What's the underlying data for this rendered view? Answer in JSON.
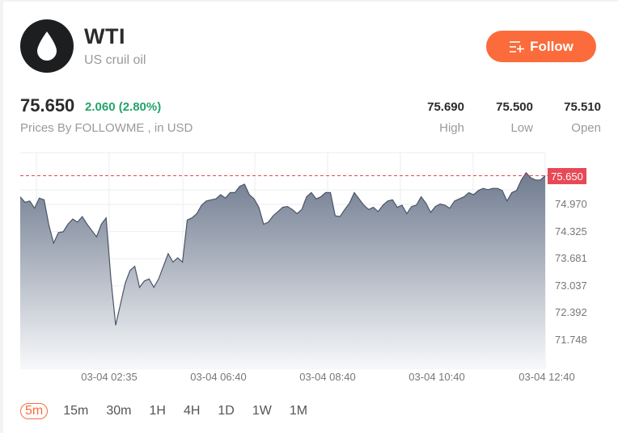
{
  "header": {
    "symbol": "WTI",
    "name": "US cruil oil",
    "logo_icon": "oil-drop-icon",
    "follow_label": "Follow",
    "follow_icon": "add-list-icon"
  },
  "quote": {
    "price": "75.650",
    "change": "2.060 (2.80%)",
    "source": "Prices By FOLLOWME , in USD",
    "stats": [
      {
        "value": "75.690",
        "label": "High"
      },
      {
        "value": "75.500",
        "label": "Low"
      },
      {
        "value": "75.510",
        "label": "Open"
      }
    ]
  },
  "colors": {
    "accent": "#fb6b3c",
    "up": "#23a46a",
    "current_price_line": "#e84956",
    "area_top": "#6f7b8f",
    "area_bottom": "#f7f8fa",
    "line": "#4a5568"
  },
  "intervals": [
    {
      "label": "5m",
      "active": true
    },
    {
      "label": "15m",
      "active": false
    },
    {
      "label": "30m",
      "active": false
    },
    {
      "label": "1H",
      "active": false
    },
    {
      "label": "4H",
      "active": false
    },
    {
      "label": "1D",
      "active": false
    },
    {
      "label": "1W",
      "active": false
    },
    {
      "label": "1M",
      "active": false
    }
  ],
  "chart_data": {
    "type": "area",
    "title": "WTI 5m",
    "xlabel": "",
    "ylabel": "USD",
    "current_price": 75.65,
    "current_price_label": "75.650",
    "y_ticks": [
      "74.970",
      "74.325",
      "73.681",
      "73.037",
      "72.392",
      "71.748"
    ],
    "y_tick_values": [
      74.97,
      74.325,
      73.681,
      73.037,
      72.392,
      71.748
    ],
    "x_ticks": [
      "03-04 02:35",
      "03-04 06:40",
      "03-04 08:40",
      "03-04 10:40",
      "03-04 12:40"
    ],
    "ylim": [
      71.0,
      76.3
    ],
    "grid": true,
    "legend": "none",
    "values": [
      75.15,
      75.02,
      75.05,
      74.88,
      75.12,
      75.08,
      74.48,
      74.05,
      74.3,
      74.32,
      74.5,
      74.62,
      74.55,
      74.68,
      74.5,
      74.35,
      74.2,
      74.5,
      74.65,
      73.2,
      72.1,
      72.6,
      73.1,
      73.4,
      73.5,
      73.0,
      73.15,
      73.2,
      73.0,
      73.2,
      73.5,
      73.8,
      73.6,
      73.7,
      73.6,
      74.6,
      74.65,
      74.75,
      74.95,
      75.05,
      75.08,
      75.1,
      75.2,
      75.12,
      75.25,
      75.25,
      75.4,
      75.45,
      75.2,
      75.1,
      74.9,
      74.5,
      74.55,
      74.7,
      74.8,
      74.9,
      74.92,
      74.85,
      74.75,
      74.85,
      75.15,
      75.25,
      75.1,
      75.15,
      75.25,
      75.25,
      74.7,
      74.68,
      74.85,
      75.0,
      75.25,
      75.1,
      74.95,
      74.85,
      74.9,
      74.8,
      74.95,
      75.05,
      75.08,
      74.9,
      74.95,
      74.75,
      74.92,
      74.95,
      75.15,
      75.0,
      74.78,
      74.92,
      74.98,
      74.95,
      74.88,
      75.05,
      75.1,
      75.15,
      75.25,
      75.2,
      75.3,
      75.35,
      75.32,
      75.35,
      75.35,
      75.3,
      75.05,
      75.25,
      75.3,
      75.55,
      75.72,
      75.6,
      75.55,
      75.55,
      75.65
    ]
  }
}
